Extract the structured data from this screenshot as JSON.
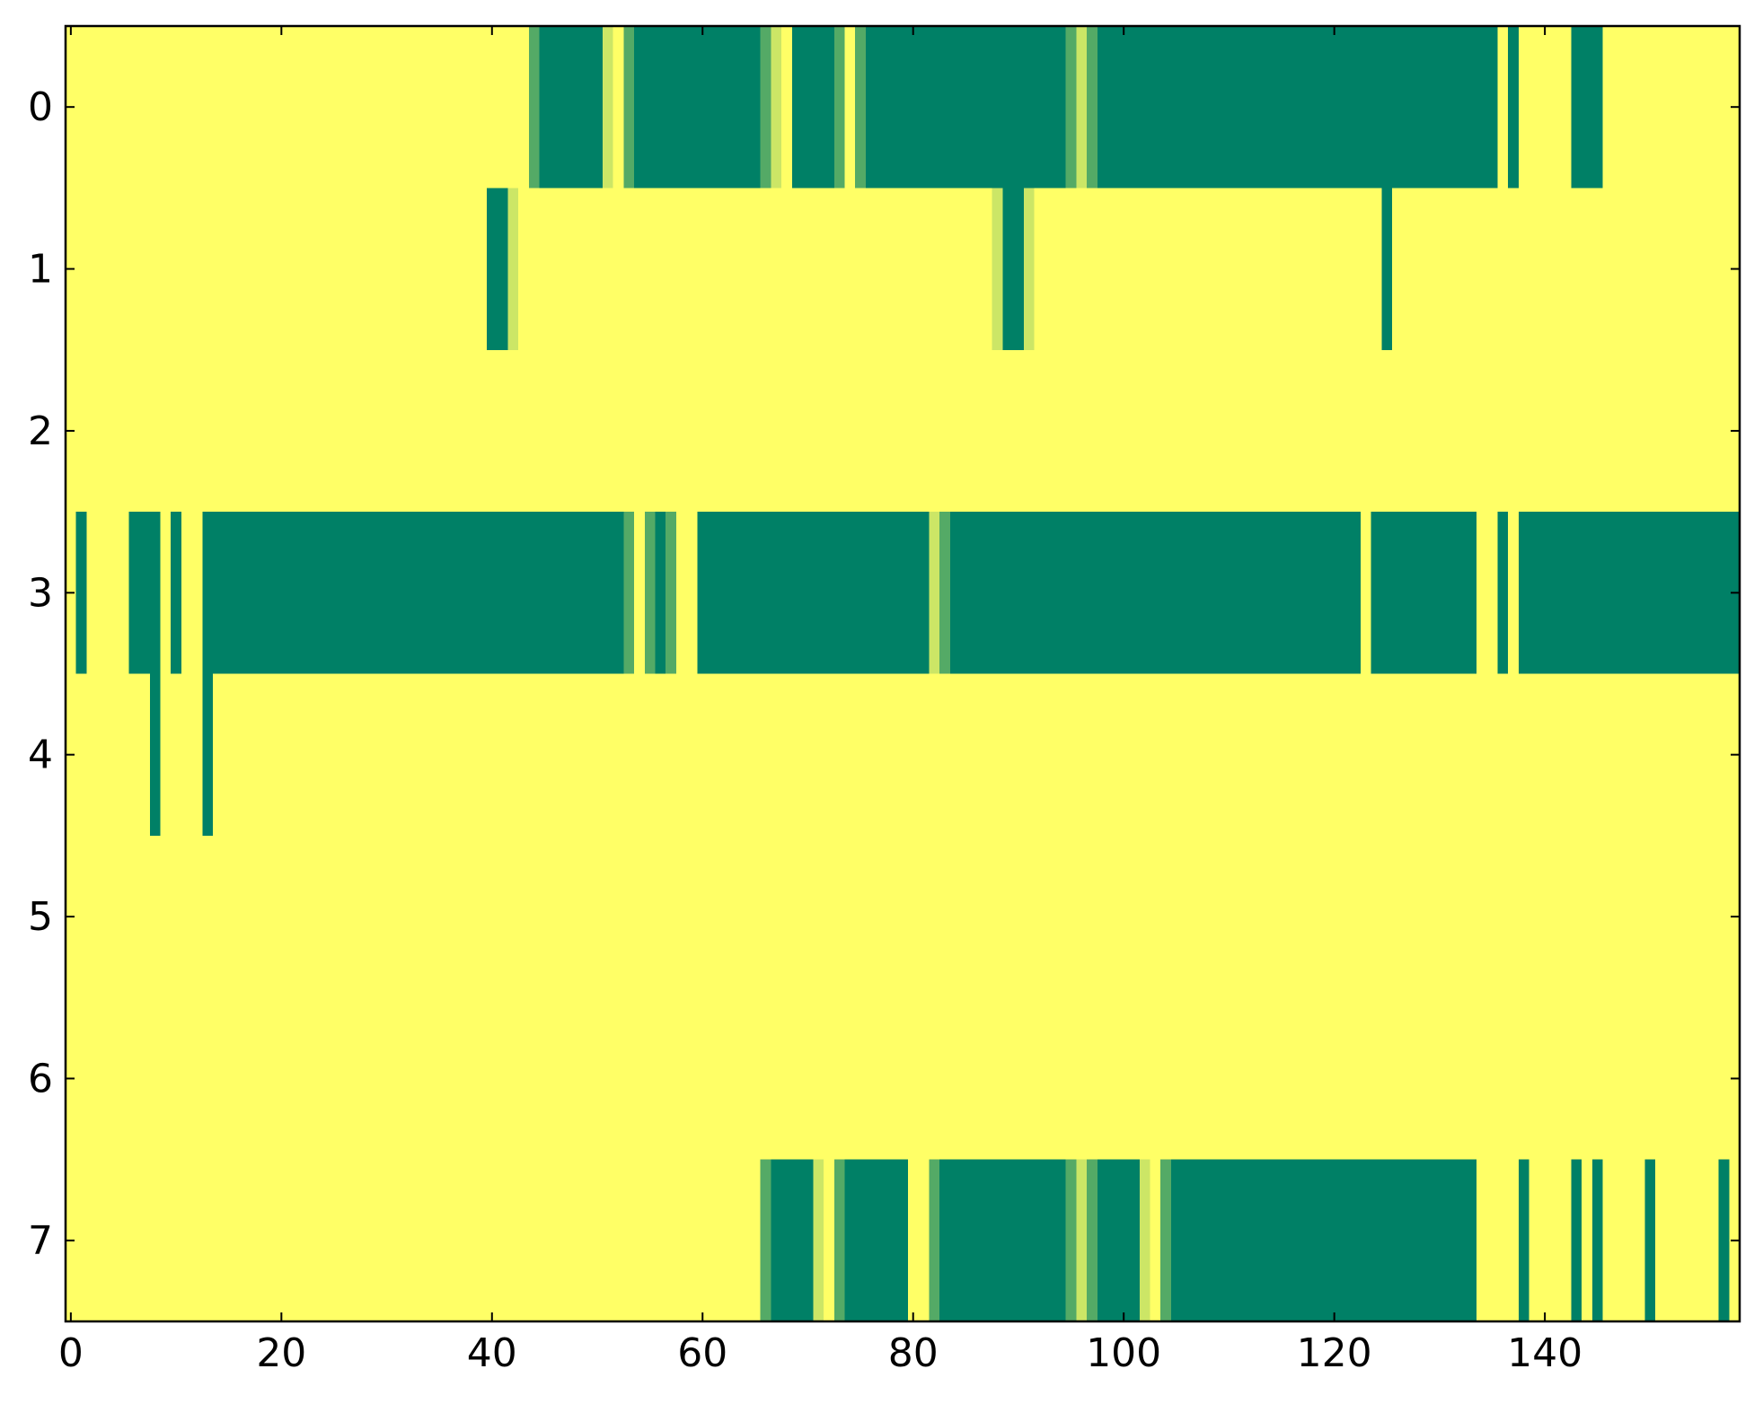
{
  "chart_data": {
    "type": "heatmap",
    "colormap": "summer",
    "xlim": [
      -0.5,
      158.5
    ],
    "ylim": [
      7.5,
      -0.5
    ],
    "xticks": [
      0,
      20,
      40,
      60,
      80,
      100,
      120,
      140
    ],
    "yticks": [
      0,
      1,
      2,
      3,
      4,
      5,
      6,
      7
    ],
    "values": [
      [
        1,
        1,
        1,
        1,
        1,
        1,
        1,
        1,
        1,
        1,
        1,
        1,
        1,
        1,
        1,
        1,
        1,
        1,
        1,
        1,
        1,
        1,
        1,
        1,
        1,
        1,
        1,
        1,
        1,
        1,
        1,
        1,
        1,
        1,
        1,
        1,
        1,
        1,
        1,
        1,
        1,
        1,
        1,
        1,
        0.33,
        0,
        0,
        0,
        0,
        0,
        0,
        0.8,
        1,
        0.33,
        0,
        0,
        0,
        0,
        0,
        0,
        0,
        0,
        0,
        0,
        0,
        0,
        0.33,
        0.8,
        1,
        0,
        0,
        0,
        0,
        0.33,
        1,
        0.33,
        0,
        0,
        0,
        0,
        0,
        0,
        0,
        0,
        0,
        0,
        0,
        0,
        0,
        0,
        0,
        0,
        0,
        0,
        0,
        0.33,
        0.8,
        0.33,
        0,
        0,
        0,
        0,
        0,
        0,
        0,
        0,
        0,
        0,
        0,
        0,
        0,
        0,
        0,
        0,
        0,
        0,
        0,
        0,
        0,
        0,
        0,
        0,
        0,
        0,
        0,
        0,
        0,
        0,
        0,
        0,
        0,
        0,
        0,
        0,
        0,
        0,
        1,
        0,
        1,
        1,
        1,
        1,
        1,
        0,
        0,
        0,
        1,
        1,
        1,
        1,
        1,
        1,
        1,
        1,
        1,
        1,
        1,
        1,
        1
      ],
      [
        1,
        1,
        1,
        1,
        1,
        1,
        1,
        1,
        1,
        1,
        1,
        1,
        1,
        1,
        1,
        1,
        1,
        1,
        1,
        1,
        1,
        1,
        1,
        1,
        1,
        1,
        1,
        1,
        1,
        1,
        1,
        1,
        1,
        1,
        1,
        1,
        1,
        1,
        1,
        1,
        0,
        0,
        0.8,
        1,
        1,
        1,
        1,
        1,
        1,
        1,
        1,
        1,
        1,
        1,
        1,
        1,
        1,
        1,
        1,
        1,
        1,
        1,
        1,
        1,
        1,
        1,
        1,
        1,
        1,
        1,
        1,
        1,
        1,
        1,
        1,
        1,
        1,
        1,
        1,
        1,
        1,
        1,
        1,
        1,
        1,
        1,
        1,
        1,
        0.8,
        0,
        0,
        0.8,
        1,
        1,
        1,
        1,
        1,
        1,
        1,
        1,
        1,
        1,
        1,
        1,
        1,
        1,
        1,
        1,
        1,
        1,
        1,
        1,
        1,
        1,
        1,
        1,
        1,
        1,
        1,
        1,
        1,
        1,
        1,
        1,
        1,
        0,
        1,
        1,
        1,
        1,
        1,
        1,
        1,
        1,
        1,
        1,
        1,
        1,
        1,
        1,
        1,
        1,
        1,
        1,
        1,
        1,
        1,
        1,
        1,
        1,
        1,
        1,
        1,
        1,
        1,
        1,
        1,
        1,
        1
      ],
      [
        1,
        1,
        1,
        1,
        1,
        1,
        1,
        1,
        1,
        1,
        1,
        1,
        1,
        1,
        1,
        1,
        1,
        1,
        1,
        1,
        1,
        1,
        1,
        1,
        1,
        1,
        1,
        1,
        1,
        1,
        1,
        1,
        1,
        1,
        1,
        1,
        1,
        1,
        1,
        1,
        1,
        1,
        1,
        1,
        1,
        1,
        1,
        1,
        1,
        1,
        1,
        1,
        1,
        1,
        1,
        1,
        1,
        1,
        1,
        1,
        1,
        1,
        1,
        1,
        1,
        1,
        1,
        1,
        1,
        1,
        1,
        1,
        1,
        1,
        1,
        1,
        1,
        1,
        1,
        1,
        1,
        1,
        1,
        1,
        1,
        1,
        1,
        1,
        1,
        1,
        1,
        1,
        1,
        1,
        1,
        1,
        1,
        1,
        1,
        1,
        1,
        1,
        1,
        1,
        1,
        1,
        1,
        1,
        1,
        1,
        1,
        1,
        1,
        1,
        1,
        1,
        1,
        1,
        1,
        1,
        1,
        1,
        1,
        1,
        1,
        1,
        1,
        1,
        1,
        1,
        1,
        1,
        1,
        1,
        1,
        1,
        1,
        1,
        1,
        1,
        1,
        1,
        1,
        1,
        1,
        1,
        1,
        1,
        1,
        1,
        1,
        1,
        1,
        1,
        1,
        1,
        1,
        1,
        1
      ],
      [
        1,
        0,
        1,
        1,
        1,
        1,
        0,
        0,
        0,
        1,
        0,
        1,
        1,
        0,
        0,
        0,
        0,
        0,
        0,
        0,
        0,
        0,
        0,
        0,
        0,
        0,
        0,
        0,
        0,
        0,
        0,
        0,
        0,
        0,
        0,
        0,
        0,
        0,
        0,
        0,
        0,
        0,
        0,
        0,
        0,
        0,
        0,
        0,
        0,
        0,
        0,
        0,
        0,
        0.33,
        1,
        0.33,
        0,
        0.33,
        1,
        1,
        0,
        0,
        0,
        0,
        0,
        0,
        0,
        0,
        0,
        0,
        0,
        0,
        0,
        0,
        0,
        0,
        0,
        0,
        0,
        0,
        0,
        0,
        0.8,
        0.33,
        0,
        0,
        0,
        0,
        0,
        0,
        0,
        0,
        0,
        0,
        0,
        0,
        0,
        0,
        0,
        0,
        0,
        0,
        0,
        0,
        0,
        0,
        0,
        0,
        0,
        0,
        0,
        0,
        0,
        0,
        0,
        0,
        0,
        0,
        0,
        0,
        0,
        0,
        0,
        1,
        0,
        0,
        0,
        0,
        0,
        0,
        0,
        0,
        0,
        0,
        1,
        1,
        0,
        1,
        0,
        0,
        0,
        0,
        0,
        0,
        0,
        0,
        0,
        0,
        0,
        0,
        0,
        0,
        0,
        0,
        0,
        0,
        0,
        0,
        0
      ],
      [
        1,
        1,
        1,
        1,
        1,
        1,
        1,
        1,
        0,
        1,
        1,
        1,
        1,
        0,
        1,
        1,
        1,
        1,
        1,
        1,
        1,
        1,
        1,
        1,
        1,
        1,
        1,
        1,
        1,
        1,
        1,
        1,
        1,
        1,
        1,
        1,
        1,
        1,
        1,
        1,
        1,
        1,
        1,
        1,
        1,
        1,
        1,
        1,
        1,
        1,
        1,
        1,
        1,
        1,
        1,
        1,
        1,
        1,
        1,
        1,
        1,
        1,
        1,
        1,
        1,
        1,
        1,
        1,
        1,
        1,
        1,
        1,
        1,
        1,
        1,
        1,
        1,
        1,
        1,
        1,
        1,
        1,
        1,
        1,
        1,
        1,
        1,
        1,
        1,
        1,
        1,
        1,
        1,
        1,
        1,
        1,
        1,
        1,
        1,
        1,
        1,
        1,
        1,
        1,
        1,
        1,
        1,
        1,
        1,
        1,
        1,
        1,
        1,
        1,
        1,
        1,
        1,
        1,
        1,
        1,
        1,
        1,
        1,
        1,
        1,
        1,
        1,
        1,
        1,
        1,
        1,
        1,
        1,
        1,
        1,
        1,
        1,
        1,
        1,
        1,
        1,
        1,
        1,
        1,
        1,
        1,
        1,
        1,
        1,
        1,
        1,
        1,
        1,
        1,
        1,
        1,
        1,
        1,
        1
      ],
      [
        1,
        1,
        1,
        1,
        1,
        1,
        1,
        1,
        1,
        1,
        1,
        1,
        1,
        1,
        1,
        1,
        1,
        1,
        1,
        1,
        1,
        1,
        1,
        1,
        1,
        1,
        1,
        1,
        1,
        1,
        1,
        1,
        1,
        1,
        1,
        1,
        1,
        1,
        1,
        1,
        1,
        1,
        1,
        1,
        1,
        1,
        1,
        1,
        1,
        1,
        1,
        1,
        1,
        1,
        1,
        1,
        1,
        1,
        1,
        1,
        1,
        1,
        1,
        1,
        1,
        1,
        1,
        1,
        1,
        1,
        1,
        1,
        1,
        1,
        1,
        1,
        1,
        1,
        1,
        1,
        1,
        1,
        1,
        1,
        1,
        1,
        1,
        1,
        1,
        1,
        1,
        1,
        1,
        1,
        1,
        1,
        1,
        1,
        1,
        1,
        1,
        1,
        1,
        1,
        1,
        1,
        1,
        1,
        1,
        1,
        1,
        1,
        1,
        1,
        1,
        1,
        1,
        1,
        1,
        1,
        1,
        1,
        1,
        1,
        1,
        1,
        1,
        1,
        1,
        1,
        1,
        1,
        1,
        1,
        1,
        1,
        1,
        1,
        1,
        1,
        1,
        1,
        1,
        1,
        1,
        1,
        1,
        1,
        1,
        1,
        1,
        1,
        1,
        1,
        1,
        1,
        1,
        1,
        1
      ],
      [
        1,
        1,
        1,
        1,
        1,
        1,
        1,
        1,
        1,
        1,
        1,
        1,
        1,
        1,
        1,
        1,
        1,
        1,
        1,
        1,
        1,
        1,
        1,
        1,
        1,
        1,
        1,
        1,
        1,
        1,
        1,
        1,
        1,
        1,
        1,
        1,
        1,
        1,
        1,
        1,
        1,
        1,
        1,
        1,
        1,
        1,
        1,
        1,
        1,
        1,
        1,
        1,
        1,
        1,
        1,
        1,
        1,
        1,
        1,
        1,
        1,
        1,
        1,
        1,
        1,
        1,
        1,
        1,
        1,
        1,
        1,
        1,
        1,
        1,
        1,
        1,
        1,
        1,
        1,
        1,
        1,
        1,
        1,
        1,
        1,
        1,
        1,
        1,
        1,
        1,
        1,
        1,
        1,
        1,
        1,
        1,
        1,
        1,
        1,
        1,
        1,
        1,
        1,
        1,
        1,
        1,
        1,
        1,
        1,
        1,
        1,
        1,
        1,
        1,
        1,
        1,
        1,
        1,
        1,
        1,
        1,
        1,
        1,
        1,
        1,
        1,
        1,
        1,
        1,
        1,
        1,
        1,
        1,
        1,
        1,
        1,
        1,
        1,
        1,
        1,
        1,
        1,
        1,
        1,
        1,
        1,
        1,
        1,
        1,
        1,
        1,
        1,
        1,
        1,
        1,
        1,
        1,
        1,
        1
      ],
      [
        1,
        1,
        1,
        1,
        1,
        1,
        1,
        1,
        1,
        1,
        1,
        1,
        1,
        1,
        1,
        1,
        1,
        1,
        1,
        1,
        1,
        1,
        1,
        1,
        1,
        1,
        1,
        1,
        1,
        1,
        1,
        1,
        1,
        1,
        1,
        1,
        1,
        1,
        1,
        1,
        1,
        1,
        1,
        1,
        1,
        1,
        1,
        1,
        1,
        1,
        1,
        1,
        1,
        1,
        1,
        1,
        1,
        1,
        1,
        1,
        1,
        1,
        1,
        1,
        1,
        1,
        0.33,
        0,
        0,
        0,
        0,
        0.8,
        1,
        0.33,
        0,
        0,
        0,
        0,
        0,
        0,
        1,
        1,
        0.33,
        0,
        0,
        0,
        0,
        0,
        0,
        0,
        0,
        0,
        0,
        0,
        0,
        0.33,
        0.8,
        0.33,
        0,
        0,
        0,
        0,
        0.8,
        1,
        0.33,
        0,
        0,
        0,
        0,
        0,
        0,
        0,
        0,
        0,
        0,
        0,
        0,
        0,
        0,
        0,
        0,
        0,
        0,
        0,
        0,
        0,
        0,
        0,
        0,
        0,
        0,
        0,
        0,
        0,
        1,
        1,
        1,
        1,
        0,
        1,
        1,
        1,
        1,
        0,
        1,
        0,
        1,
        1,
        1,
        1,
        0,
        1,
        1,
        1,
        1,
        1,
        1,
        0,
        1
      ]
    ]
  }
}
